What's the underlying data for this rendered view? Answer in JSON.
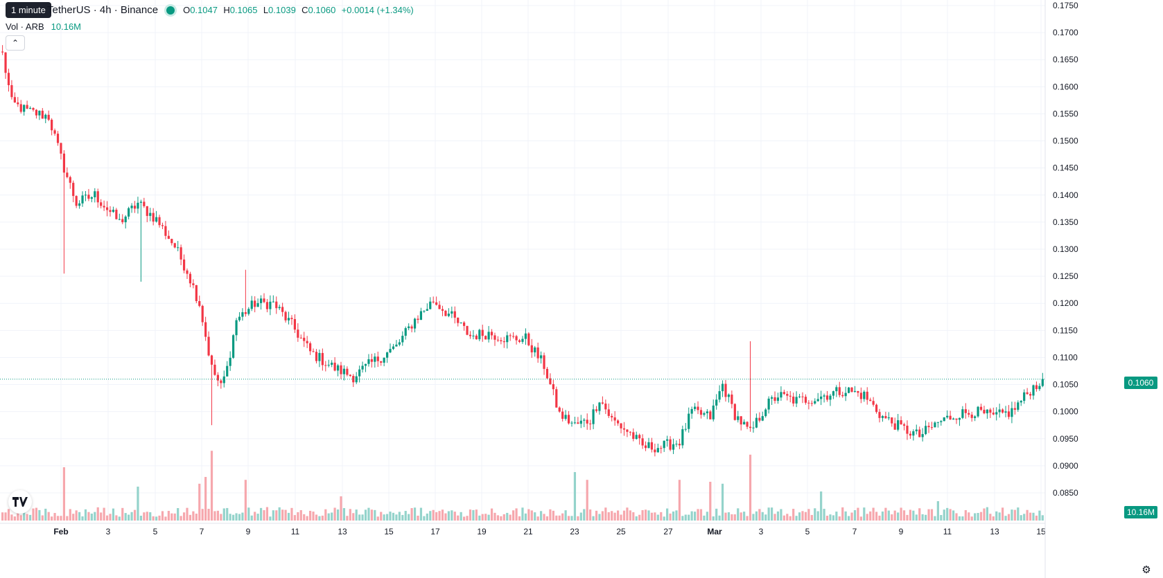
{
  "header": {
    "symbol_title": "TetherUS · 4h · Binance",
    "tooltip": "1 minute",
    "ohlc": {
      "o_label": "O",
      "o_value": "0.1047",
      "h_label": "H",
      "h_value": "0.1065",
      "l_label": "L",
      "l_value": "0.1039",
      "c_label": "C",
      "c_value": "0.1060",
      "change": "+0.0014 (+1.34%)"
    },
    "volume_label": "Vol · ARB",
    "volume_value": "10.16M",
    "collapse_icon": "chevron-up-icon"
  },
  "price_axis": {
    "ticks": [
      "0.1750",
      "0.1700",
      "0.1650",
      "0.1600",
      "0.1550",
      "0.1500",
      "0.1450",
      "0.1400",
      "0.1350",
      "0.1300",
      "0.1250",
      "0.1200",
      "0.1150",
      "0.1100",
      "0.1050",
      "0.1000",
      "0.0950",
      "0.0900",
      "0.0850"
    ],
    "current_price_label": "0.1060",
    "current_volume_label": "10.16M"
  },
  "time_axis": {
    "ticks": [
      "Feb",
      "3",
      "5",
      "7",
      "9",
      "11",
      "13",
      "15",
      "17",
      "19",
      "21",
      "23",
      "25",
      "27",
      "Mar",
      "3",
      "5",
      "7",
      "9",
      "11",
      "13",
      "15"
    ]
  },
  "colors": {
    "up": "#089981",
    "down": "#f23645",
    "up_vol": "#94d3cb",
    "down_vol": "#f6a7ad",
    "grid": "#f0f3fa",
    "price_line": "#089981"
  },
  "chart_data": {
    "type": "candlestick",
    "price_range": [
      0.0835,
      0.176
    ],
    "keyframes": [
      [
        0,
        0.166
      ],
      [
        3,
        0.157
      ],
      [
        8,
        0.1555
      ],
      [
        15,
        0.1545
      ],
      [
        20,
        0.145
      ],
      [
        24,
        0.1385
      ],
      [
        30,
        0.14
      ],
      [
        38,
        0.135
      ],
      [
        44,
        0.1385
      ],
      [
        50,
        0.1355
      ],
      [
        56,
        0.1305
      ],
      [
        60,
        0.126
      ],
      [
        64,
        0.12
      ],
      [
        68,
        0.108
      ],
      [
        71,
        0.1045
      ],
      [
        73,
        0.108
      ],
      [
        76,
        0.117
      ],
      [
        82,
        0.12
      ],
      [
        88,
        0.12
      ],
      [
        94,
        0.116
      ],
      [
        100,
        0.111
      ],
      [
        108,
        0.108
      ],
      [
        114,
        0.1065
      ],
      [
        120,
        0.109
      ],
      [
        128,
        0.112
      ],
      [
        134,
        0.117
      ],
      [
        140,
        0.1205
      ],
      [
        146,
        0.1175
      ],
      [
        152,
        0.114
      ],
      [
        158,
        0.1145
      ],
      [
        164,
        0.1135
      ],
      [
        170,
        0.1135
      ],
      [
        176,
        0.1085
      ],
      [
        181,
        0.0995
      ],
      [
        186,
        0.0975
      ],
      [
        191,
        0.0985
      ],
      [
        194,
        0.1025
      ],
      [
        198,
        0.0985
      ],
      [
        204,
        0.096
      ],
      [
        208,
        0.0935
      ],
      [
        214,
        0.0935
      ],
      [
        220,
        0.0945
      ],
      [
        224,
        0.1
      ],
      [
        230,
        0.099
      ],
      [
        234,
        0.105
      ],
      [
        238,
        0.0995
      ],
      [
        243,
        0.096
      ],
      [
        248,
        0.101
      ],
      [
        252,
        0.103
      ],
      [
        258,
        0.102
      ],
      [
        264,
        0.1025
      ],
      [
        270,
        0.1035
      ],
      [
        274,
        0.104
      ],
      [
        280,
        0.103
      ],
      [
        286,
        0.099
      ],
      [
        292,
        0.097
      ],
      [
        298,
        0.0955
      ],
      [
        304,
        0.098
      ],
      [
        310,
        0.0995
      ],
      [
        316,
        0.1
      ],
      [
        322,
        0.099
      ],
      [
        328,
        0.1
      ],
      [
        334,
        0.104
      ],
      [
        338,
        0.106
      ]
    ],
    "volume_spikes": [
      [
        20,
        0.55
      ],
      [
        44,
        0.35
      ],
      [
        64,
        0.38
      ],
      [
        66,
        0.45
      ],
      [
        68,
        0.72
      ],
      [
        79,
        0.42
      ],
      [
        110,
        0.25
      ],
      [
        186,
        0.5
      ],
      [
        190,
        0.42
      ],
      [
        220,
        0.42
      ],
      [
        230,
        0.4
      ],
      [
        234,
        0.38
      ],
      [
        243,
        0.68
      ],
      [
        266,
        0.3
      ],
      [
        304,
        0.2
      ]
    ],
    "wick_spikes": [
      [
        20,
        0.1255
      ],
      [
        45,
        0.124
      ],
      [
        68,
        0.0975
      ],
      [
        79,
        0.1262
      ],
      [
        243,
        0.113
      ]
    ],
    "candle_count": 339,
    "last_close": 0.106
  }
}
